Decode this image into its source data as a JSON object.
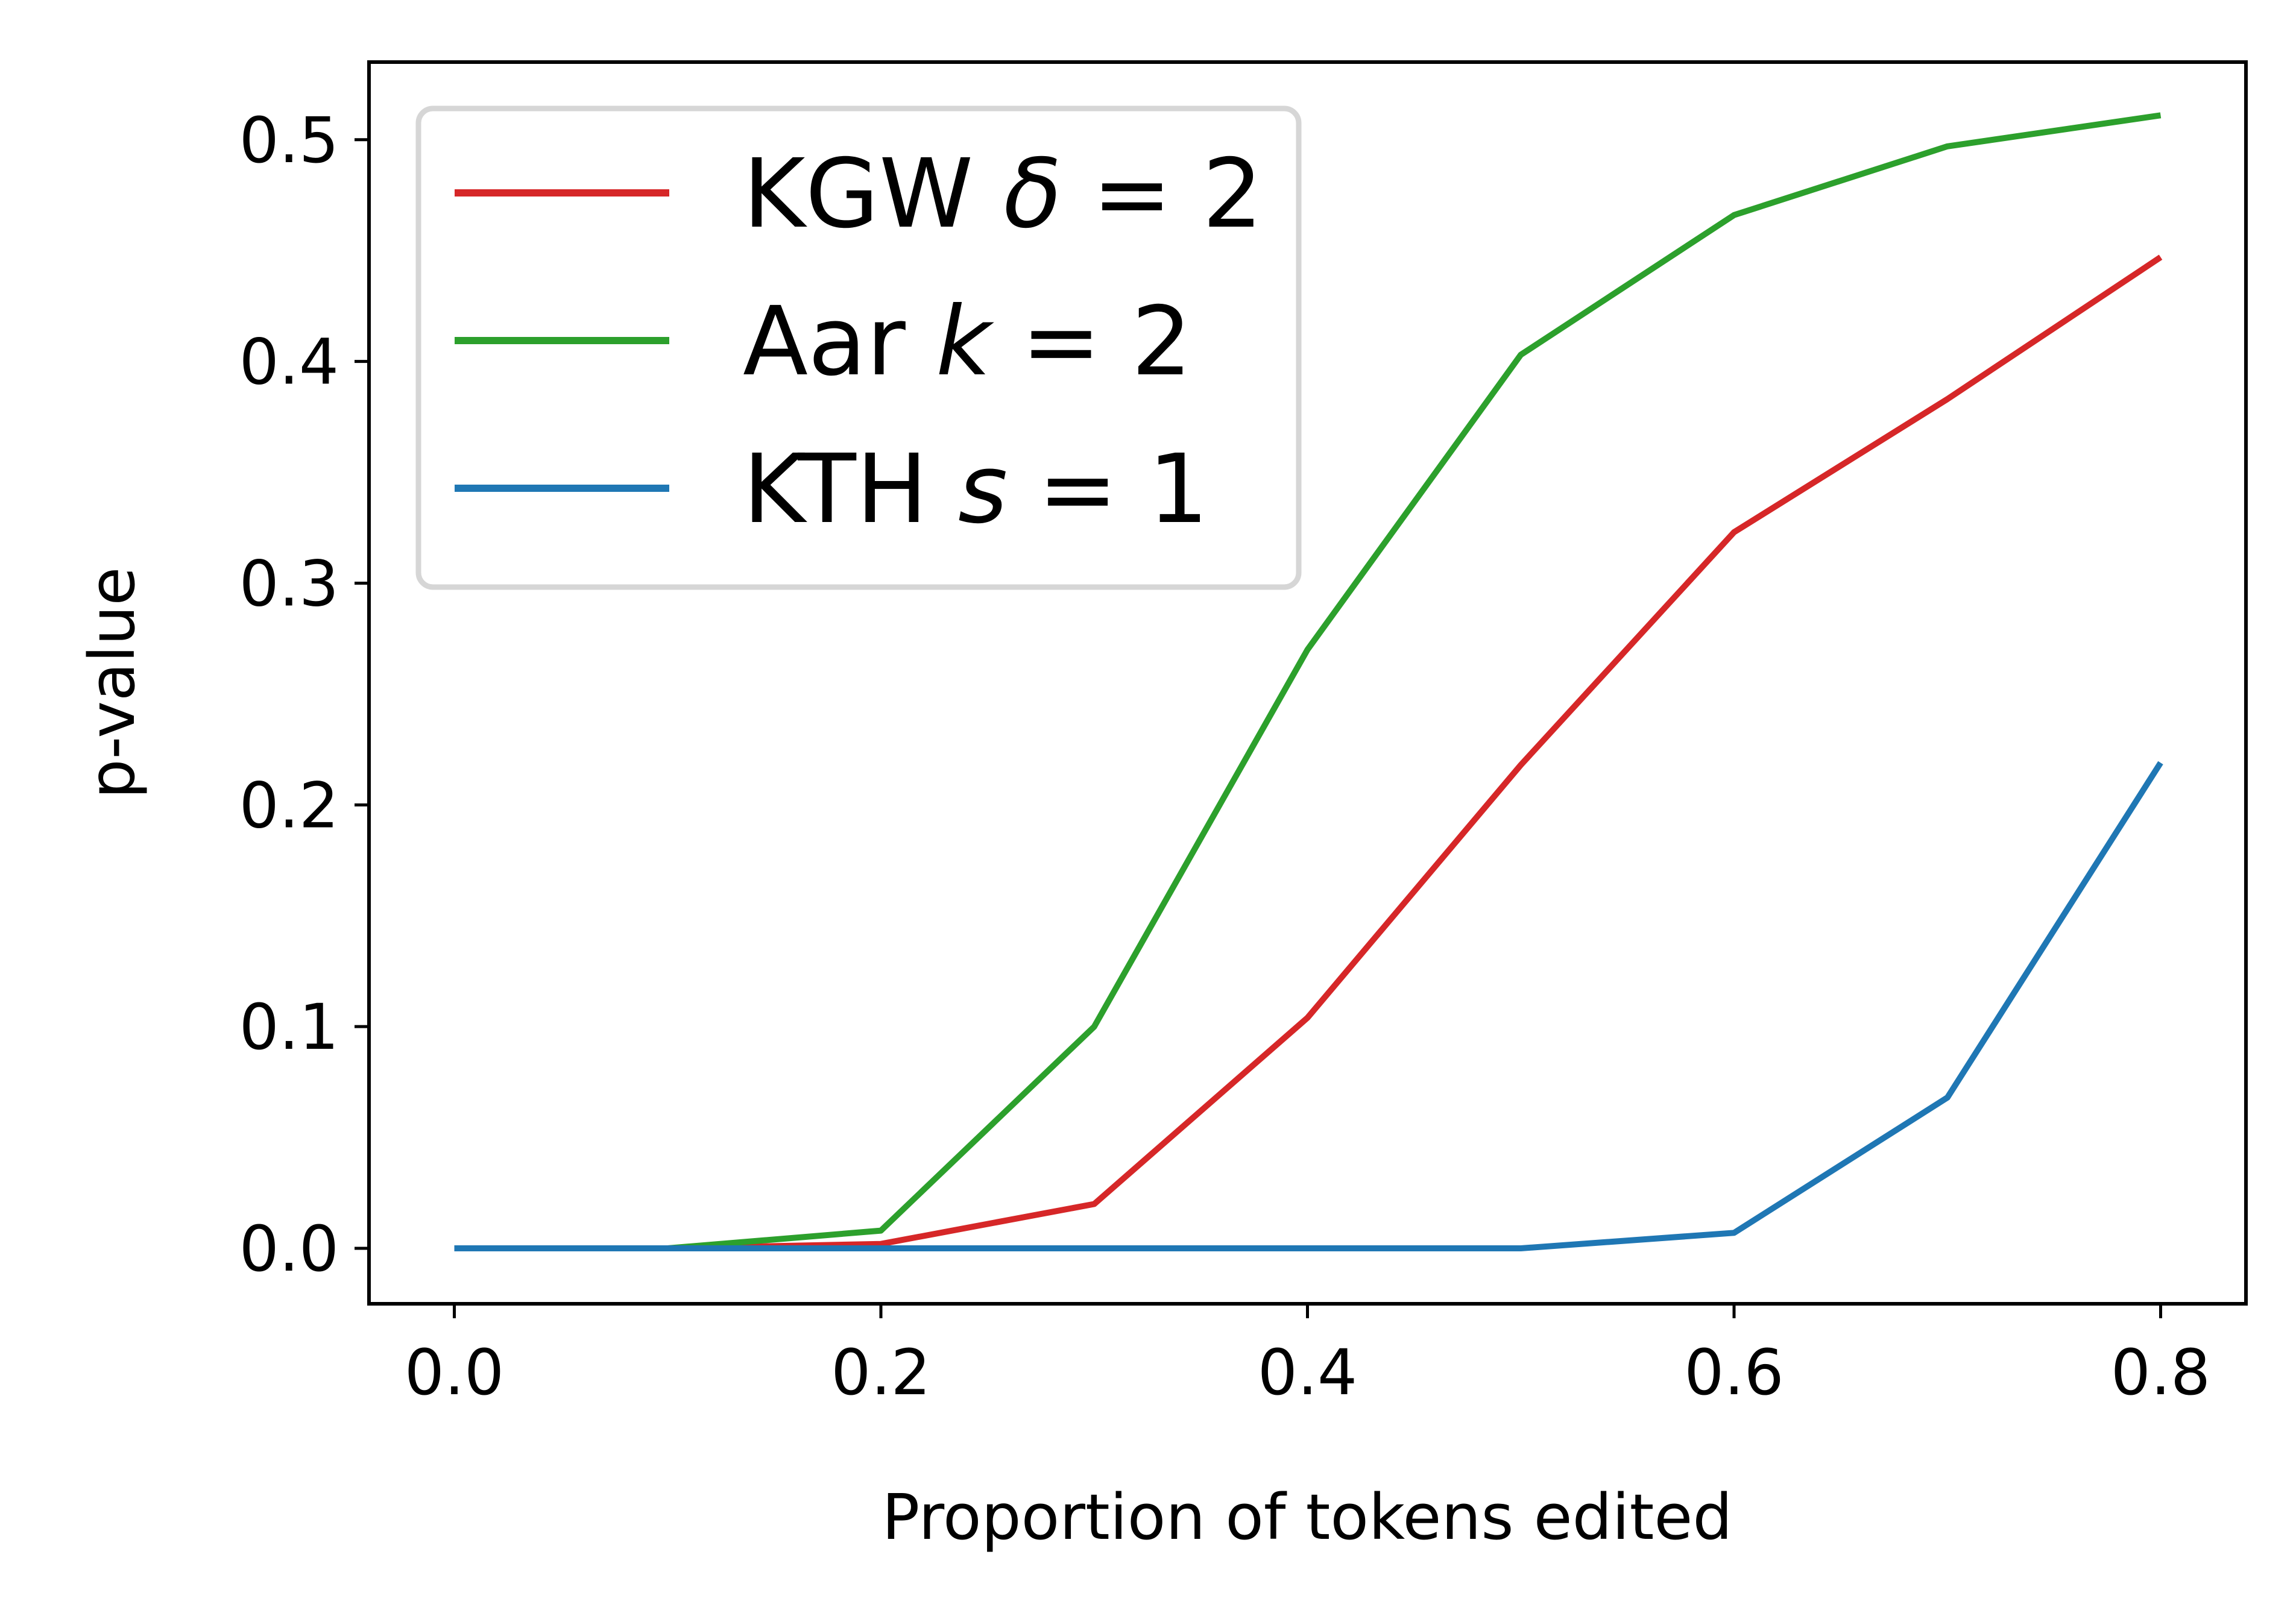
{
  "chart_data": {
    "type": "line",
    "xlabel": "Proportion of tokens edited",
    "ylabel": "p-value",
    "xlim": [
      -0.04,
      0.84
    ],
    "ylim": [
      -0.025,
      0.535
    ],
    "xticks": [
      0.0,
      0.2,
      0.4,
      0.6,
      0.8
    ],
    "xtick_labels": [
      "0.0",
      "0.2",
      "0.4",
      "0.6",
      "0.8"
    ],
    "yticks": [
      0.0,
      0.1,
      0.2,
      0.3,
      0.4,
      0.5
    ],
    "ytick_labels": [
      "0.0",
      "0.1",
      "0.2",
      "0.3",
      "0.4",
      "0.5"
    ],
    "grid": false,
    "legend_position": "top-left",
    "x": [
      0.0,
      0.1,
      0.2,
      0.3,
      0.4,
      0.5,
      0.6,
      0.7,
      0.8
    ],
    "series": [
      {
        "name": "KGW δ = 2",
        "name_parts": [
          "KGW ",
          "δ",
          " = 2"
        ],
        "color": "#d62728",
        "values": [
          0.0,
          0.0,
          0.002,
          0.02,
          0.104,
          0.218,
          0.323,
          0.383,
          0.447
        ]
      },
      {
        "name": "Aar k = 2",
        "name_parts": [
          "Aar ",
          "k",
          " = 2"
        ],
        "color": "#2ca02c",
        "values": [
          0.0,
          0.0,
          0.008,
          0.1,
          0.27,
          0.403,
          0.466,
          0.497,
          0.511
        ]
      },
      {
        "name": "KTH s = 1",
        "name_parts": [
          "KTH ",
          "s",
          " = 1"
        ],
        "color": "#1f77b4",
        "values": [
          0.0,
          0.0,
          0.0,
          0.0,
          0.0,
          0.0,
          0.007,
          0.068,
          0.219
        ]
      }
    ]
  }
}
